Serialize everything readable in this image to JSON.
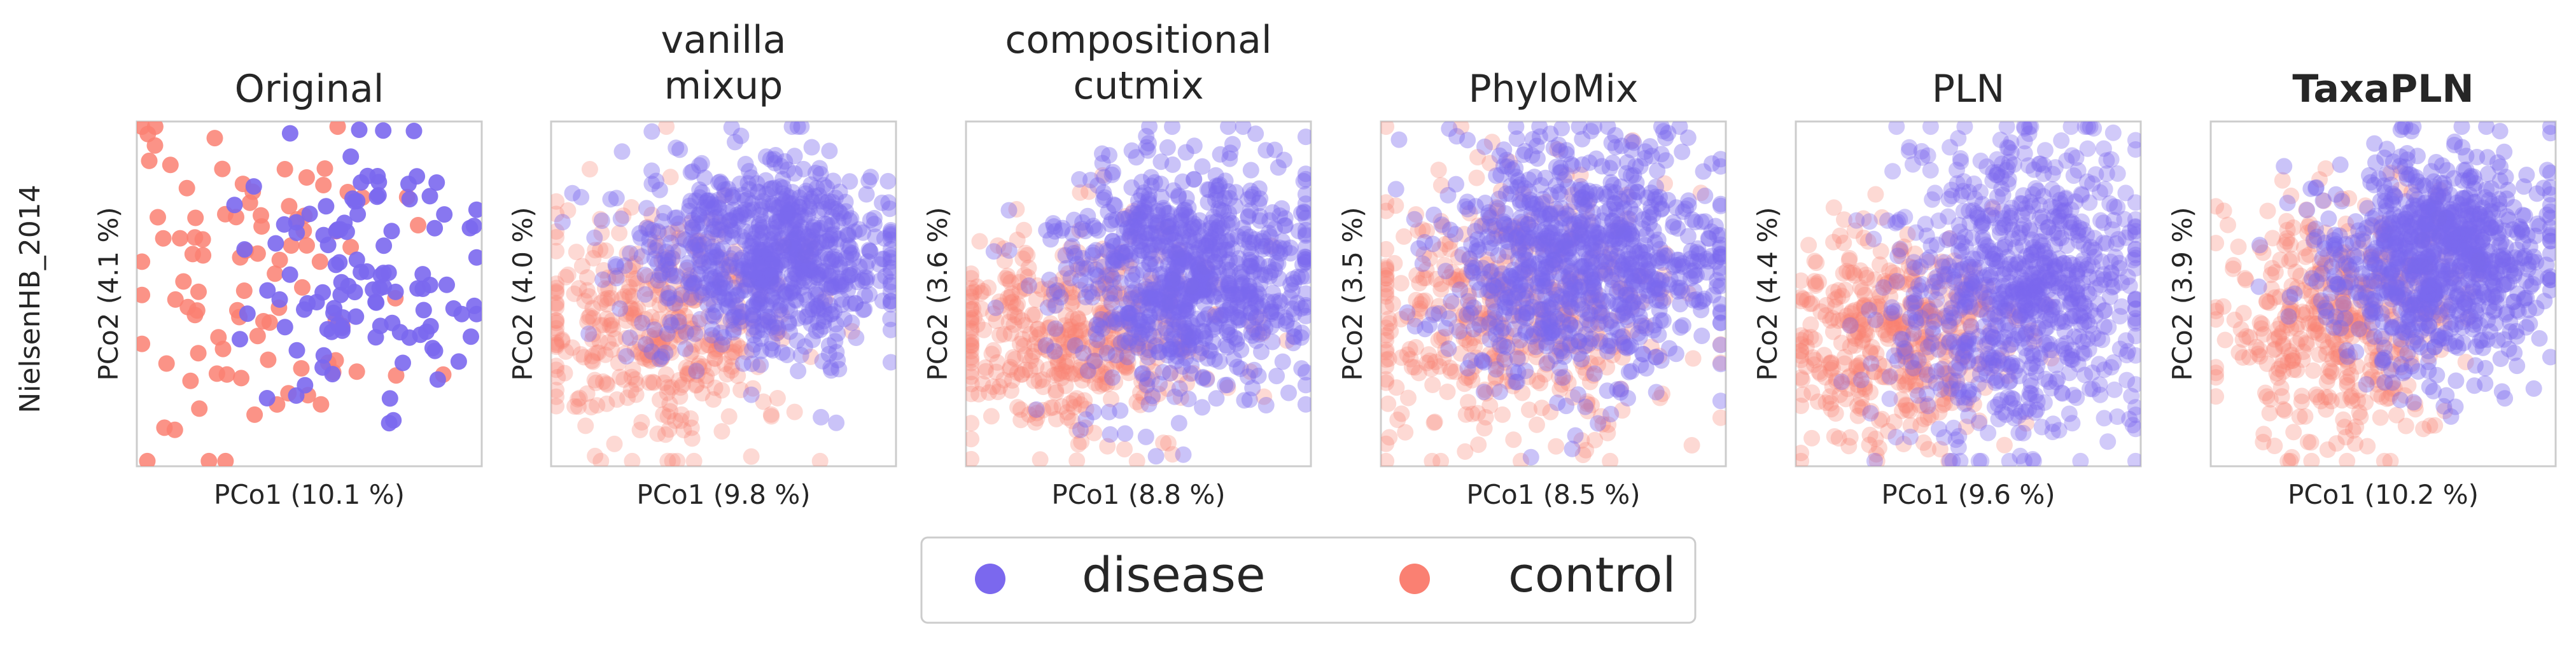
{
  "figure": {
    "row_label": "NielsenHB_2014"
  },
  "legend": {
    "placement": "bottom-center",
    "entries": [
      {
        "name": "disease",
        "color": "#7B68EE"
      },
      {
        "name": "control",
        "color": "#FA8072"
      }
    ]
  },
  "chart_data": [
    {
      "type": "scatter",
      "title": "Original",
      "title_bold": false,
      "xlabel": "PCo1 (10.1 %)",
      "ylabel": "PCo2 (4.1 %)",
      "xlim": [
        -1,
        1
      ],
      "ylim": [
        -1,
        1
      ],
      "grid": false,
      "series": [
        {
          "name": "control",
          "color": "#FA8072",
          "alpha": 0.85,
          "n": 95,
          "center": [
            -0.35,
            0.0
          ],
          "spread": [
            0.42,
            0.48
          ],
          "seed": 11
        },
        {
          "name": "disease",
          "color": "#7B68EE",
          "alpha": 0.9,
          "n": 115,
          "center": [
            0.32,
            0.12
          ],
          "spread": [
            0.33,
            0.35
          ],
          "seed": 12
        }
      ]
    },
    {
      "type": "scatter",
      "title": "vanilla\nmixup",
      "title_bold": false,
      "xlabel": "PCo1 (9.8 %)",
      "ylabel": "PCo2 (4.0 %)",
      "xlim": [
        -1,
        1
      ],
      "ylim": [
        -1,
        1
      ],
      "grid": false,
      "series": [
        {
          "name": "control",
          "color": "#FA8072",
          "alpha": 0.3,
          "n": 380,
          "center": [
            -0.38,
            -0.2
          ],
          "spread": [
            0.38,
            0.35
          ],
          "seed": 21
        },
        {
          "name": "disease",
          "color": "#7B68EE",
          "alpha": 0.4,
          "n": 800,
          "center": [
            0.25,
            0.22
          ],
          "spread": [
            0.38,
            0.28
          ],
          "seed": 22
        }
      ]
    },
    {
      "type": "scatter",
      "title": "compositional\ncutmix",
      "title_bold": false,
      "xlabel": "PCo1 (8.8 %)",
      "ylabel": "PCo2 (3.6 %)",
      "xlim": [
        -1,
        1
      ],
      "ylim": [
        -1,
        1
      ],
      "grid": false,
      "series": [
        {
          "name": "control",
          "color": "#FA8072",
          "alpha": 0.3,
          "n": 420,
          "center": [
            -0.35,
            -0.25
          ],
          "spread": [
            0.42,
            0.3
          ],
          "seed": 31
        },
        {
          "name": "disease",
          "color": "#7B68EE",
          "alpha": 0.4,
          "n": 850,
          "center": [
            0.3,
            0.1
          ],
          "spread": [
            0.36,
            0.32
          ],
          "seed": 32
        }
      ]
    },
    {
      "type": "scatter",
      "title": "PhyloMix",
      "title_bold": false,
      "xlabel": "PCo1 (8.5 %)",
      "ylabel": "PCo2 (3.5 %)",
      "xlim": [
        -1,
        1
      ],
      "ylim": [
        -1,
        1
      ],
      "grid": false,
      "series": [
        {
          "name": "control",
          "color": "#FA8072",
          "alpha": 0.3,
          "n": 420,
          "center": [
            -0.25,
            -0.1
          ],
          "spread": [
            0.45,
            0.42
          ],
          "seed": 41
        },
        {
          "name": "disease",
          "color": "#7B68EE",
          "alpha": 0.4,
          "n": 850,
          "center": [
            0.15,
            0.2
          ],
          "spread": [
            0.42,
            0.35
          ],
          "seed": 42
        }
      ]
    },
    {
      "type": "scatter",
      "title": "PLN",
      "title_bold": false,
      "xlabel": "PCo1 (9.6 %)",
      "ylabel": "PCo2 (4.4 %)",
      "xlim": [
        -1,
        1
      ],
      "ylim": [
        -1,
        1
      ],
      "grid": false,
      "series": [
        {
          "name": "control",
          "color": "#FA8072",
          "alpha": 0.3,
          "n": 420,
          "center": [
            -0.45,
            -0.3
          ],
          "spread": [
            0.32,
            0.3
          ],
          "seed": 51
        },
        {
          "name": "disease",
          "color": "#7B68EE",
          "alpha": 0.35,
          "n": 850,
          "center": [
            0.3,
            0.05
          ],
          "spread": [
            0.35,
            0.45
          ],
          "seed": 52
        }
      ]
    },
    {
      "type": "scatter",
      "title": "TaxaPLN",
      "title_bold": true,
      "xlabel": "PCo1 (10.2 %)",
      "ylabel": "PCo2 (3.9 %)",
      "xlim": [
        -1,
        1
      ],
      "ylim": [
        -1,
        1
      ],
      "grid": false,
      "series": [
        {
          "name": "control",
          "color": "#FA8072",
          "alpha": 0.3,
          "n": 420,
          "center": [
            -0.3,
            -0.2
          ],
          "spread": [
            0.35,
            0.35
          ],
          "seed": 61
        },
        {
          "name": "disease",
          "color": "#7B68EE",
          "alpha": 0.4,
          "n": 850,
          "center": [
            0.3,
            0.2
          ],
          "spread": [
            0.33,
            0.3
          ],
          "seed": 62
        }
      ]
    }
  ]
}
